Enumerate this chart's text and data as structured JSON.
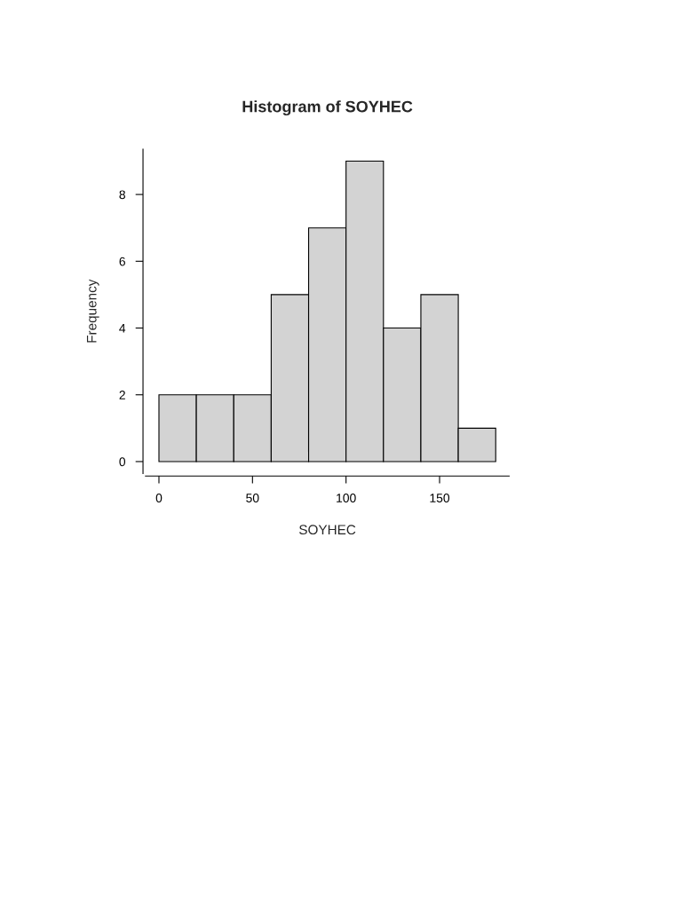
{
  "chart_data": {
    "type": "histogram",
    "title": "Histogram of SOYHEC",
    "xlabel": "SOYHEC",
    "ylabel": "Frequency",
    "bins": [
      0,
      20,
      40,
      60,
      80,
      100,
      120,
      140,
      160,
      180
    ],
    "values": [
      2,
      2,
      2,
      5,
      7,
      9,
      4,
      5,
      1
    ],
    "color": "#d3d3d3",
    "xlim": [
      -7.2,
      187.2
    ],
    "ylim": [
      -0.36,
      9.36
    ],
    "xticks": [
      0,
      50,
      100,
      150
    ],
    "yticks": [
      0,
      2,
      4,
      6,
      8
    ],
    "grid": false
  }
}
